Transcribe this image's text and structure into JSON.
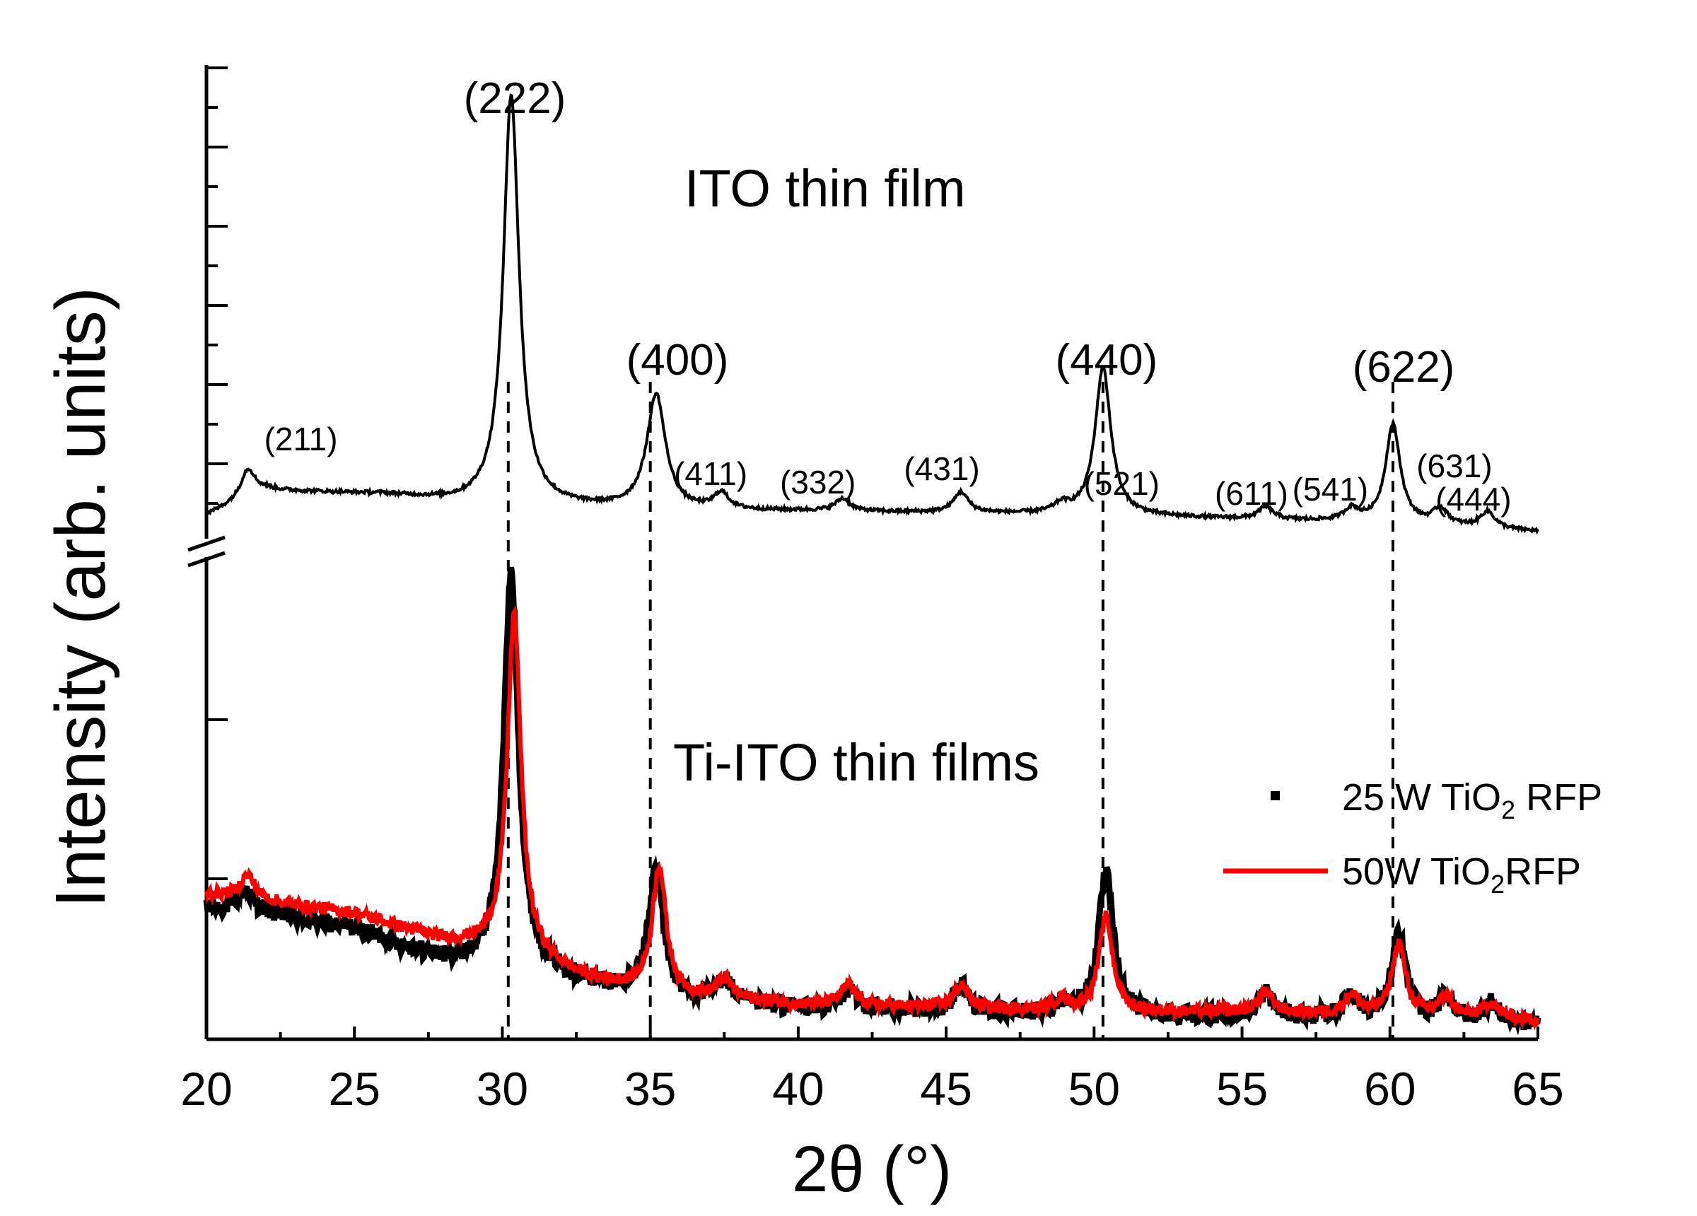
{
  "chart_data": {
    "type": "line",
    "xlabel_main": "2θ",
    "xlabel_unit": "(°)",
    "ylabel": "Intensity (arb. units)",
    "xlim": [
      20,
      65
    ],
    "x_ticks": [
      20,
      25,
      30,
      35,
      40,
      45,
      50,
      55,
      60,
      65
    ],
    "x_tick_labels": [
      "20",
      "25",
      "30",
      "35",
      "40",
      "45",
      "50",
      "55",
      "60",
      "65"
    ],
    "y_axis_broken": true,
    "reference_lines": [
      30.2,
      35.0,
      50.3,
      60.1
    ],
    "panels": [
      {
        "label": "ITO thin film",
        "series": [
          {
            "name": "ITO thin film",
            "color": "#000000",
            "baseline": [
              [
                20,
                0.04
              ],
              [
                22,
                0.1
              ],
              [
                26,
                0.09
              ],
              [
                28.5,
                0.07
              ],
              [
                32,
                0.06
              ],
              [
                36,
                0.05
              ],
              [
                40,
                0.05
              ],
              [
                45,
                0.045
              ],
              [
                50,
                0.04
              ],
              [
                55,
                0.03
              ],
              [
                60,
                0.02
              ],
              [
                65,
                0.0
              ]
            ],
            "peaks": [
              {
                "hkl": "(211)",
                "x": 21.4,
                "height": 0.07,
                "width": 0.3
              },
              {
                "hkl": "(222)",
                "x": 30.3,
                "height": 1.0,
                "width": 0.32
              },
              {
                "hkl": "(400)",
                "x": 35.2,
                "height": 0.28,
                "width": 0.38
              },
              {
                "hkl": "(411)",
                "x": 37.4,
                "height": 0.04,
                "width": 0.3
              },
              {
                "hkl": "(332)",
                "x": 41.5,
                "height": 0.03,
                "width": 0.3
              },
              {
                "hkl": "(431)",
                "x": 45.5,
                "height": 0.05,
                "width": 0.3
              },
              {
                "hkl": "(521)",
                "x": 48.9,
                "height": 0.02,
                "width": 0.3
              },
              {
                "hkl": "(440)",
                "x": 50.3,
                "height": 0.36,
                "width": 0.32
              },
              {
                "hkl": "(611)",
                "x": 55.8,
                "height": 0.03,
                "width": 0.3
              },
              {
                "hkl": "(541)",
                "x": 58.7,
                "height": 0.03,
                "width": 0.3
              },
              {
                "hkl": "(622)",
                "x": 60.1,
                "height": 0.24,
                "width": 0.3
              },
              {
                "hkl": "(631)",
                "x": 61.7,
                "height": 0.04,
                "width": 0.3
              },
              {
                "hkl": "(444)",
                "x": 63.3,
                "height": 0.04,
                "width": 0.3
              }
            ]
          }
        ]
      },
      {
        "label": "Ti-ITO thin films",
        "series": [
          {
            "name": "25 W TiO2 RFP",
            "legend_parts": [
              "25 W TiO",
              "2",
              " RFP"
            ],
            "color": "#000000",
            "marker": "square",
            "baseline": [
              [
                20,
                0.31
              ],
              [
                22,
                0.3
              ],
              [
                25,
                0.26
              ],
              [
                28,
                0.18
              ],
              [
                30,
                0.16
              ],
              [
                31.5,
                0.15
              ],
              [
                33,
                0.12
              ],
              [
                36,
                0.08
              ],
              [
                40,
                0.06
              ],
              [
                45,
                0.05
              ],
              [
                50,
                0.04
              ],
              [
                55,
                0.04
              ],
              [
                60,
                0.03
              ],
              [
                65,
                0.02
              ]
            ],
            "peaks": [
              {
                "x": 21.3,
                "height": 0.06,
                "width": 0.3
              },
              {
                "x": 30.3,
                "height": 1.0,
                "width": 0.3
              },
              {
                "x": 35.2,
                "height": 0.32,
                "width": 0.3
              },
              {
                "x": 37.5,
                "height": 0.06,
                "width": 0.3
              },
              {
                "x": 41.7,
                "height": 0.05,
                "width": 0.3
              },
              {
                "x": 45.5,
                "height": 0.07,
                "width": 0.3
              },
              {
                "x": 48.9,
                "height": 0.03,
                "width": 0.3
              },
              {
                "x": 50.4,
                "height": 0.36,
                "width": 0.3
              },
              {
                "x": 55.8,
                "height": 0.06,
                "width": 0.3
              },
              {
                "x": 58.7,
                "height": 0.06,
                "width": 0.3
              },
              {
                "x": 60.3,
                "height": 0.21,
                "width": 0.3
              },
              {
                "x": 61.9,
                "height": 0.06,
                "width": 0.3
              },
              {
                "x": 63.4,
                "height": 0.05,
                "width": 0.3
              }
            ]
          },
          {
            "name": "50W TiO2RFP",
            "legend_parts": [
              "50W TiO",
              "2",
              "RFP"
            ],
            "color": "#ff0000",
            "marker": "line",
            "baseline": [
              [
                20,
                0.35
              ],
              [
                22,
                0.33
              ],
              [
                25,
                0.3
              ],
              [
                28,
                0.23
              ],
              [
                29.8,
                0.21
              ],
              [
                31.5,
                0.17
              ],
              [
                33,
                0.13
              ],
              [
                36,
                0.09
              ],
              [
                40,
                0.07
              ],
              [
                45,
                0.06
              ],
              [
                50,
                0.05
              ],
              [
                55,
                0.05
              ],
              [
                60,
                0.04
              ],
              [
                65,
                0.03
              ]
            ],
            "peaks": [
              {
                "x": 21.4,
                "height": 0.06,
                "width": 0.3
              },
              {
                "x": 30.4,
                "height": 0.86,
                "width": 0.28
              },
              {
                "x": 35.3,
                "height": 0.32,
                "width": 0.28
              },
              {
                "x": 37.5,
                "height": 0.05,
                "width": 0.3
              },
              {
                "x": 41.7,
                "height": 0.05,
                "width": 0.3
              },
              {
                "x": 45.5,
                "height": 0.06,
                "width": 0.3
              },
              {
                "x": 48.9,
                "height": 0.03,
                "width": 0.3
              },
              {
                "x": 50.4,
                "height": 0.24,
                "width": 0.28
              },
              {
                "x": 55.8,
                "height": 0.05,
                "width": 0.3
              },
              {
                "x": 58.7,
                "height": 0.05,
                "width": 0.3
              },
              {
                "x": 60.3,
                "height": 0.18,
                "width": 0.28
              },
              {
                "x": 61.9,
                "height": 0.05,
                "width": 0.3
              },
              {
                "x": 63.4,
                "height": 0.04,
                "width": 0.3
              }
            ]
          }
        ]
      }
    ]
  }
}
